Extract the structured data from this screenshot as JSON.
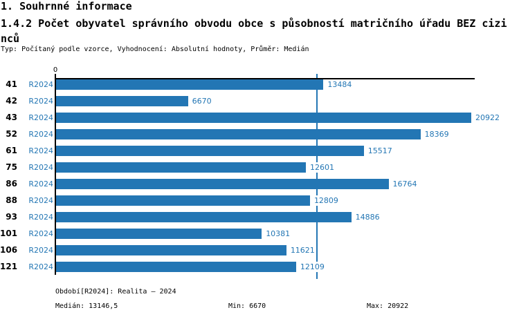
{
  "header": {
    "title": "1. Souhrnné informace",
    "subtitle": "1.4.2 Počet obyvatel správního obvodu obce s působností matričního úřadu BEZ cizi\nnců",
    "meta": "Typ: Počítaný podle vzorce, Vyhodnocení: Absolutní hodnoty, Průměr: Medián"
  },
  "chart_data": {
    "type": "bar",
    "orientation": "horizontal",
    "categories": [
      "41",
      "42",
      "43",
      "52",
      "61",
      "75",
      "86",
      "88",
      "93",
      "101",
      "106",
      "121"
    ],
    "series": [
      {
        "name": "R2024",
        "values": [
          13484,
          6670,
          20922,
          18369,
          15517,
          12601,
          16764,
          12809,
          14886,
          10381,
          11621,
          12109
        ]
      }
    ],
    "value_labels": true,
    "axis_zero_label": "0",
    "xlim": [
      0,
      20922
    ],
    "median_line_value": 13146.5,
    "grid": false,
    "legend": "none",
    "title": "",
    "xlabel": "",
    "ylabel": ""
  },
  "footer": {
    "period": "Období[R2024]: Realita – 2024",
    "median": "Medián: 13146,5",
    "min": "Min: 6670",
    "max": "Max: 20922"
  },
  "colors": {
    "bar": "#2376B4",
    "accent_text": "#2376B4",
    "median_line": "#2376B4",
    "axis": "#000000",
    "background": "#FFFFFF"
  }
}
